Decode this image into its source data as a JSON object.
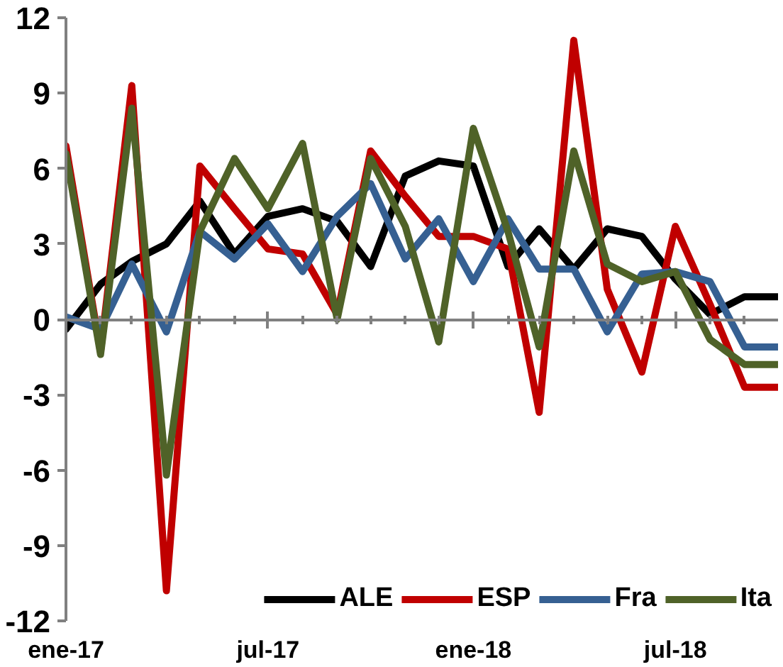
{
  "chart_data": {
    "type": "line",
    "x": [
      "2017-01",
      "2017-02",
      "2017-03",
      "2017-04",
      "2017-05",
      "2017-06",
      "2017-07",
      "2017-08",
      "2017-09",
      "2017-10",
      "2017-11",
      "2017-12",
      "2018-01",
      "2018-02",
      "2018-03",
      "2018-04",
      "2018-05",
      "2018-06",
      "2018-07",
      "2018-08",
      "2018-09",
      "2018-10"
    ],
    "series": [
      {
        "name": "ALE",
        "color": "#000000",
        "values": [
          -0.4,
          1.4,
          2.3,
          3.0,
          4.7,
          2.6,
          4.1,
          4.4,
          3.9,
          2.1,
          5.7,
          6.3,
          6.1,
          2.1,
          3.6,
          2.0,
          3.6,
          3.3,
          1.6,
          0.2,
          0.9,
          0.9
        ]
      },
      {
        "name": "ESP",
        "color": "#c00000",
        "values": [
          6.9,
          -1.3,
          9.3,
          -10.8,
          6.1,
          4.4,
          2.8,
          2.6,
          0.2,
          6.7,
          4.9,
          3.3,
          3.3,
          2.8,
          -3.7,
          11.1,
          1.2,
          -2.1,
          3.7,
          0.6,
          -2.7,
          -2.7
        ]
      },
      {
        "name": "Fra",
        "color": "#366092",
        "values": [
          0.1,
          -0.4,
          2.2,
          -0.5,
          3.5,
          2.4,
          3.8,
          1.9,
          4.1,
          5.4,
          2.4,
          4.0,
          1.5,
          4.0,
          2.0,
          2.0,
          -0.5,
          1.8,
          1.9,
          1.5,
          -1.1,
          -1.1
        ]
      },
      {
        "name": "Ita",
        "color": "#4f6228",
        "values": [
          6.6,
          -1.4,
          8.4,
          -6.2,
          3.5,
          6.4,
          4.4,
          7.0,
          0.0,
          6.4,
          3.7,
          -0.9,
          7.6,
          3.5,
          -1.1,
          6.7,
          2.2,
          1.5,
          1.9,
          -0.8,
          -1.8,
          -1.8
        ]
      }
    ],
    "xlim": [
      "2017-01",
      "2018-10"
    ],
    "xticks": [
      {
        "value": "2017-01",
        "label": "ene-17"
      },
      {
        "value": "2017-02",
        "label": null
      },
      {
        "value": "2017-03",
        "label": null
      },
      {
        "value": "2017-04",
        "label": null
      },
      {
        "value": "2017-05",
        "label": null
      },
      {
        "value": "2017-06",
        "label": null
      },
      {
        "value": "2017-07",
        "label": "jul-17"
      },
      {
        "value": "2017-08",
        "label": null
      },
      {
        "value": "2017-09",
        "label": null
      },
      {
        "value": "2017-10",
        "label": null
      },
      {
        "value": "2017-11",
        "label": null
      },
      {
        "value": "2017-12",
        "label": null
      },
      {
        "value": "2018-01",
        "label": "ene-18"
      },
      {
        "value": "2018-02",
        "label": null
      },
      {
        "value": "2018-03",
        "label": null
      },
      {
        "value": "2018-04",
        "label": null
      },
      {
        "value": "2018-05",
        "label": null
      },
      {
        "value": "2018-06",
        "label": null
      },
      {
        "value": "2018-07",
        "label": "jul-18"
      },
      {
        "value": "2018-08",
        "label": null
      },
      {
        "value": "2018-09",
        "label": null
      }
    ],
    "ylim": [
      -12,
      12
    ],
    "yticks": [
      -12,
      -9,
      -6,
      -3,
      0,
      3,
      6,
      9,
      12
    ],
    "legend": "bottom right",
    "marker": "none",
    "line_style": "solid"
  }
}
